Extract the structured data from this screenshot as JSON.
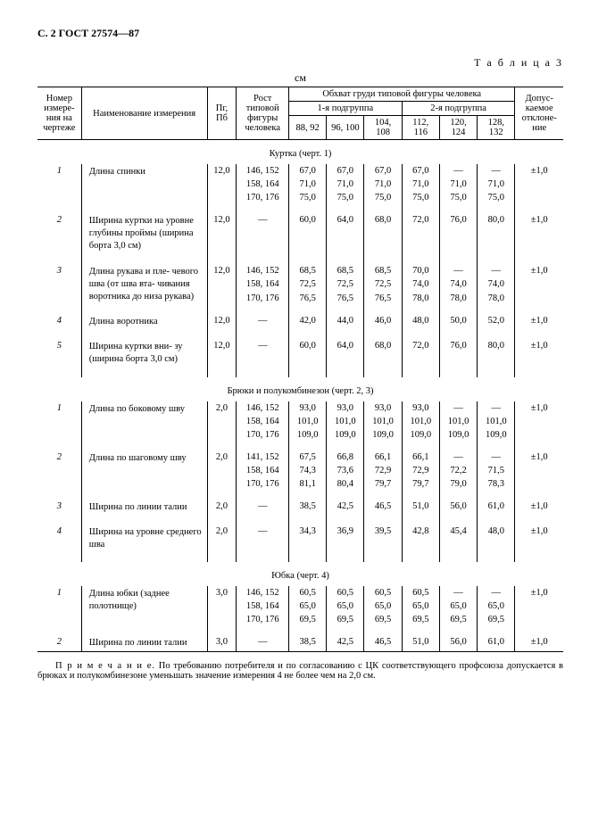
{
  "header": "С. 2 ГОСТ 27574—87",
  "tableLabel": "Т а б л и ц а 3",
  "unit": "см",
  "columns": {
    "c1": "Номер измере- ния на чертеже",
    "c2": "Наименование измерения",
    "c3": "Пг, Пб",
    "c4": "Рост типовой фигуры человека",
    "groupTop": "Обхват груди типовой фигуры человека",
    "sub1": "1-я подгруппа",
    "sub2": "2-я подгруппа",
    "g1": "88, 92",
    "g2": "96, 100",
    "g3": "104, 108",
    "g4": "112, 116",
    "g5": "120, 124",
    "g6": "128, 132",
    "c_last": "Допус- каемое отклоне- ние"
  },
  "sections": [
    {
      "title": "Куртка (черт. 1)",
      "rows": [
        {
          "idx": "1",
          "name": "Длина спинки",
          "pg": "12,0",
          "rost": [
            "146, 152",
            "158, 164",
            "170, 176"
          ],
          "v": [
            [
              "67,0",
              "71,0",
              "75,0"
            ],
            [
              "67,0",
              "71,0",
              "75,0"
            ],
            [
              "67,0",
              "71,0",
              "75,0"
            ],
            [
              "67,0",
              "71,0",
              "75,0"
            ],
            [
              "—",
              "71,0",
              "75,0"
            ],
            [
              "—",
              "71,0",
              "75,0"
            ]
          ],
          "tol": "±1,0"
        },
        {
          "idx": "2",
          "name": "Ширина куртки на уровне глубины проймы (ширина борта 3,0 см)",
          "pg": "12,0",
          "rost": [
            "—"
          ],
          "v": [
            [
              "60,0"
            ],
            [
              "64,0"
            ],
            [
              "68,0"
            ],
            [
              "72,0"
            ],
            [
              "76,0"
            ],
            [
              "80,0"
            ]
          ],
          "tol": "±1,0"
        },
        {
          "idx": "3",
          "name": "Длина рукава и пле- чевого шва (от шва вта- чивания воротника до низа рукава)",
          "pg": "12,0",
          "rost": [
            "146, 152",
            "158, 164",
            "170, 176"
          ],
          "v": [
            [
              "68,5",
              "72,5",
              "76,5"
            ],
            [
              "68,5",
              "72,5",
              "76,5"
            ],
            [
              "68,5",
              "72,5",
              "76,5"
            ],
            [
              "70,0",
              "74,0",
              "78,0"
            ],
            [
              "—",
              "74,0",
              "78,0"
            ],
            [
              "—",
              "74,0",
              "78,0"
            ]
          ],
          "tol": "±1,0"
        },
        {
          "idx": "4",
          "name": "Длина воротника",
          "pg": "12,0",
          "rost": [
            "—"
          ],
          "v": [
            [
              "42,0"
            ],
            [
              "44,0"
            ],
            [
              "46,0"
            ],
            [
              "48,0"
            ],
            [
              "50,0"
            ],
            [
              "52,0"
            ]
          ],
          "tol": "±1,0"
        },
        {
          "idx": "5",
          "name": "Ширина куртки вни- зу (ширина борта 3,0 см)",
          "pg": "12,0",
          "rost": [
            "—"
          ],
          "v": [
            [
              "60,0"
            ],
            [
              "64,0"
            ],
            [
              "68,0"
            ],
            [
              "72,0"
            ],
            [
              "76,0"
            ],
            [
              "80,0"
            ]
          ],
          "tol": "±1,0"
        }
      ]
    },
    {
      "title": "Брюки и полукомбинезон (черт. 2, 3)",
      "rows": [
        {
          "idx": "1",
          "name": "Длина по боковому шву",
          "pg": "2,0",
          "rost": [
            "146, 152",
            "158, 164",
            "170, 176"
          ],
          "v": [
            [
              "93,0",
              "101,0",
              "109,0"
            ],
            [
              "93,0",
              "101,0",
              "109,0"
            ],
            [
              "93,0",
              "101,0",
              "109,0"
            ],
            [
              "93,0",
              "101,0",
              "109,0"
            ],
            [
              "—",
              "101,0",
              "109,0"
            ],
            [
              "—",
              "101,0",
              "109,0"
            ]
          ],
          "tol": "±1,0"
        },
        {
          "idx": "2",
          "name": "Длина по шаговому шву",
          "pg": "2,0",
          "rost": [
            "141, 152",
            "158, 164",
            "170, 176"
          ],
          "v": [
            [
              "67,5",
              "74,3",
              "81,1"
            ],
            [
              "66,8",
              "73,6",
              "80,4"
            ],
            [
              "66,1",
              "72,9",
              "79,7"
            ],
            [
              "66,1",
              "72,9",
              "79,7"
            ],
            [
              "—",
              "72,2",
              "79,0"
            ],
            [
              "—",
              "71,5",
              "78,3"
            ]
          ],
          "tol": "±1,0"
        },
        {
          "idx": "3",
          "name": "Ширина по линии талии",
          "pg": "2,0",
          "rost": [
            "—"
          ],
          "v": [
            [
              "38,5"
            ],
            [
              "42,5"
            ],
            [
              "46,5"
            ],
            [
              "51,0"
            ],
            [
              "56,0"
            ],
            [
              "61,0"
            ]
          ],
          "tol": "±1,0"
        },
        {
          "idx": "4",
          "name": "Ширина на уровне среднего шва",
          "pg": "2,0",
          "rost": [
            "—"
          ],
          "v": [
            [
              "34,3"
            ],
            [
              "36,9"
            ],
            [
              "39,5"
            ],
            [
              "42,8"
            ],
            [
              "45,4"
            ],
            [
              "48,0"
            ]
          ],
          "tol": "±1,0"
        }
      ]
    },
    {
      "title": "Юбка (черт. 4)",
      "rows": [
        {
          "idx": "1",
          "name": "Длина юбки (заднее полотнище)",
          "pg": "3,0",
          "rost": [
            "146, 152",
            "158, 164",
            "170, 176"
          ],
          "v": [
            [
              "60,5",
              "65,0",
              "69,5"
            ],
            [
              "60,5",
              "65,0",
              "69,5"
            ],
            [
              "60,5",
              "65,0",
              "69,5"
            ],
            [
              "60,5",
              "65,0",
              "69,5"
            ],
            [
              "—",
              "65,0",
              "69,5"
            ],
            [
              "—",
              "65,0",
              "69,5"
            ]
          ],
          "tol": "±1,0"
        },
        {
          "idx": "2",
          "name": "Ширина по линии талии",
          "pg": "3,0",
          "rost": [
            "—"
          ],
          "v": [
            [
              "38,5"
            ],
            [
              "42,5"
            ],
            [
              "46,5"
            ],
            [
              "51,0"
            ],
            [
              "56,0"
            ],
            [
              "61,0"
            ]
          ],
          "tol": "±1,0"
        }
      ]
    }
  ],
  "noteLabel": "П р и м е ч а н и е.",
  "note": "По требованию потребителя и по согласованию с ЦК соответствующего профсоюза допускается в брюках и полукомбинезоне уменьшать значение измерения 4 не более чем на 2,0 см."
}
